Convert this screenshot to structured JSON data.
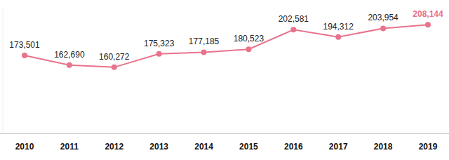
{
  "chart_data": {
    "type": "line",
    "categories": [
      "2010",
      "2011",
      "2012",
      "2013",
      "2014",
      "2015",
      "2016",
      "2017",
      "2018",
      "2019"
    ],
    "values": [
      173501,
      162690,
      160272,
      175323,
      177185,
      180523,
      202581,
      194312,
      203954,
      208144
    ],
    "value_labels": [
      "173,501",
      "162,690",
      "160,272",
      "175,323",
      "177,185",
      "180,523",
      "202,581",
      "194,312",
      "203,954",
      "208,144"
    ],
    "color": "#e8738b",
    "ylim": [
      86000,
      228000
    ],
    "marker": "circle",
    "data_labels": true,
    "tick_labels": "x",
    "grid": false
  }
}
